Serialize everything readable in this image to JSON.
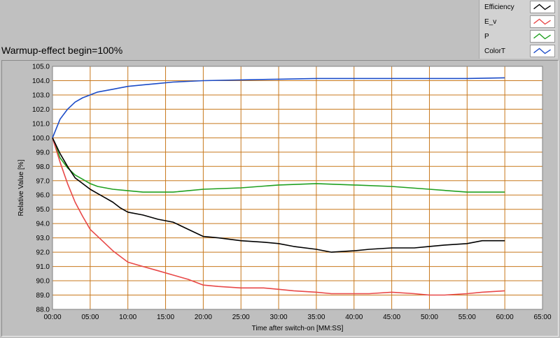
{
  "title": "Warmup-effect begin=100%",
  "colors": {
    "Efficiency": "#000000",
    "E_v": "#e84848",
    "P": "#20a020",
    "ColorT": "#1c4cc8",
    "grid": "#c8781c",
    "plot_bg": "#ffffff"
  },
  "chart_data": {
    "type": "line",
    "xlabel": "Time after switch-on [MM:SS]",
    "ylabel": "Relative Value [%]",
    "xlim": [
      0,
      65
    ],
    "ylim": [
      88,
      105
    ],
    "x_ticks": [
      "00:00",
      "05:00",
      "10:00",
      "15:00",
      "20:00",
      "25:00",
      "30:00",
      "35:00",
      "40:00",
      "45:00",
      "50:00",
      "55:00",
      "60:00",
      "65:00"
    ],
    "y_ticks": [
      "88.0",
      "89.0",
      "90.0",
      "91.0",
      "92.0",
      "93.0",
      "94.0",
      "95.0",
      "96.0",
      "97.0",
      "98.0",
      "99.0",
      "100.0",
      "101.0",
      "102.0",
      "103.0",
      "104.0",
      "105.0"
    ],
    "grid": true,
    "legend_position": "top-right",
    "series": [
      {
        "name": "Efficiency",
        "x": [
          0,
          1,
          2,
          3,
          4,
          5,
          6,
          7,
          8,
          9,
          10,
          12,
          14,
          16,
          18,
          20,
          22,
          25,
          28,
          30,
          32,
          35,
          37,
          40,
          42,
          45,
          48,
          50,
          52,
          55,
          57,
          60
        ],
        "y": [
          100,
          98.9,
          98.0,
          97.2,
          96.8,
          96.4,
          96.1,
          95.8,
          95.5,
          95.1,
          94.8,
          94.6,
          94.3,
          94.1,
          93.6,
          93.1,
          93.0,
          92.8,
          92.7,
          92.6,
          92.4,
          92.2,
          92.0,
          92.1,
          92.2,
          92.3,
          92.3,
          92.4,
          92.5,
          92.6,
          92.8,
          92.8
        ]
      },
      {
        "name": "E_v",
        "x": [
          0,
          1,
          2,
          3,
          4,
          5,
          6,
          7,
          8,
          9,
          10,
          12,
          14,
          16,
          18,
          20,
          22,
          25,
          28,
          30,
          32,
          35,
          37,
          40,
          42,
          45,
          48,
          50,
          52,
          55,
          57,
          60
        ],
        "y": [
          100,
          98.3,
          96.8,
          95.5,
          94.5,
          93.6,
          93.1,
          92.6,
          92.1,
          91.7,
          91.3,
          91.0,
          90.7,
          90.4,
          90.1,
          89.7,
          89.6,
          89.5,
          89.5,
          89.4,
          89.3,
          89.2,
          89.1,
          89.1,
          89.1,
          89.2,
          89.1,
          89.0,
          89.0,
          89.1,
          89.2,
          89.3
        ]
      },
      {
        "name": "P",
        "x": [
          0,
          1,
          2,
          3,
          4,
          5,
          6,
          8,
          10,
          12,
          14,
          16,
          18,
          20,
          25,
          30,
          35,
          40,
          45,
          50,
          55,
          60
        ],
        "y": [
          100,
          98.6,
          97.9,
          97.4,
          97.1,
          96.8,
          96.6,
          96.4,
          96.3,
          96.2,
          96.2,
          96.2,
          96.3,
          96.4,
          96.5,
          96.7,
          96.8,
          96.7,
          96.6,
          96.4,
          96.2,
          96.2
        ]
      },
      {
        "name": "ColorT",
        "x": [
          0,
          1,
          2,
          3,
          4,
          5,
          6,
          8,
          10,
          12,
          14,
          16,
          18,
          20,
          25,
          30,
          35,
          40,
          45,
          50,
          55,
          60
        ],
        "y": [
          100,
          101.3,
          102.0,
          102.5,
          102.8,
          103.0,
          103.2,
          103.4,
          103.6,
          103.7,
          103.8,
          103.9,
          103.95,
          104.0,
          104.05,
          104.1,
          104.15,
          104.15,
          104.15,
          104.15,
          104.15,
          104.2
        ]
      }
    ]
  }
}
